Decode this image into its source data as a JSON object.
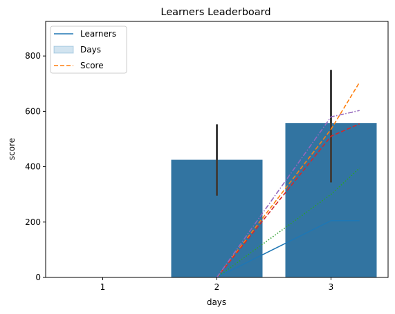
{
  "chart_data": {
    "type": "bar",
    "title": "Learners Leaderboard",
    "xlabel": "days",
    "ylabel": "score",
    "categories": [
      "1",
      "2",
      "3"
    ],
    "x_ticks": [
      "1",
      "2",
      "3"
    ],
    "y_ticks": [
      "0",
      "200",
      "400",
      "600",
      "800"
    ],
    "ylim": [
      0,
      925
    ],
    "grid": false,
    "bar_color": "#3274a1",
    "bars": [
      {
        "x": "2",
        "value": 425,
        "ci": [
          295,
          553
        ]
      },
      {
        "x": "3",
        "value": 558,
        "ci": [
          343,
          750
        ]
      }
    ],
    "legend": {
      "placement": "top-left",
      "entries": [
        {
          "label": "Learners",
          "kind": "line",
          "color": "#1f77b4",
          "dash": "solid"
        },
        {
          "label": "Days",
          "kind": "patch",
          "color": "#1f77b4"
        },
        {
          "label": "Score",
          "kind": "line",
          "color": "#ff7f0e",
          "dash": "dashed"
        }
      ]
    },
    "series": [
      {
        "color": "#1f77b4",
        "dash": "solid",
        "points": [
          [
            2,
            0
          ],
          [
            3,
            205
          ],
          [
            3.25,
            205
          ]
        ]
      },
      {
        "color": "#ff7f0e",
        "dash": "dashed",
        "points": [
          [
            2,
            0
          ],
          [
            3,
            535
          ],
          [
            3.25,
            705
          ]
        ]
      },
      {
        "color": "#2ca02c",
        "dash": "dotted",
        "points": [
          [
            2,
            0
          ],
          [
            3,
            300
          ],
          [
            3.25,
            395
          ]
        ]
      },
      {
        "color": "#d62728",
        "dash": "dashed",
        "points": [
          [
            2,
            0
          ],
          [
            3,
            510
          ],
          [
            3.25,
            555
          ]
        ]
      },
      {
        "color": "#9467bd",
        "dash": "dashdot",
        "points": [
          [
            2,
            0
          ],
          [
            3,
            580
          ],
          [
            3.25,
            603
          ]
        ]
      }
    ]
  }
}
